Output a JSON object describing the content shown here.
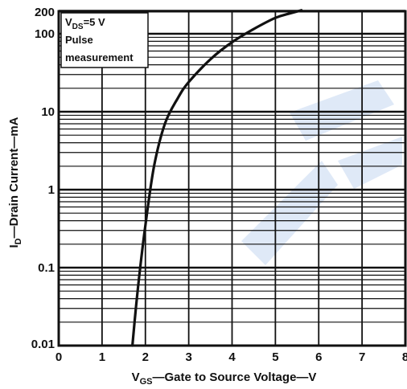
{
  "colors": {
    "curve": "#111111",
    "grid": "#111111",
    "watermark": "#dfe9f7"
  },
  "chart_data": {
    "type": "line",
    "xscale": "linear",
    "yscale": "log",
    "xlim": [
      0,
      8
    ],
    "ylim": [
      0.01,
      200
    ],
    "grid": true,
    "x_ticks": [
      "0",
      "1",
      "2",
      "3",
      "4",
      "5",
      "6",
      "7",
      "8"
    ],
    "x_tick_values": [
      0,
      1,
      2,
      3,
      4,
      5,
      6,
      7,
      8
    ],
    "y_ticks": [
      "0.01",
      "0.1",
      "1",
      "10",
      "100",
      "200"
    ],
    "y_tick_values": [
      0.01,
      0.1,
      1,
      10,
      100,
      200
    ],
    "xlabel": {
      "main": "V",
      "sub": "GS",
      "rest": "—Gate to Source Voltage—V"
    },
    "ylabel": {
      "main": "I",
      "sub": "D",
      "rest": "—Drain Current—mA"
    },
    "legend": {
      "line1_main": "V",
      "line1_sub": "DS",
      "line1_rest": "=5 V",
      "line2": "Pulse",
      "line3": "measurement",
      "placement": "top-left"
    },
    "series": [
      {
        "x": [
          1.7,
          1.78,
          1.88,
          2.0,
          2.2,
          2.45,
          2.75,
          3.0,
          3.5,
          4.0,
          4.5,
          5.0,
          5.3,
          5.6
        ],
        "y": [
          0.01,
          0.03,
          0.1,
          0.35,
          2,
          7,
          15,
          24,
          47,
          78,
          115,
          160,
          180,
          200
        ]
      }
    ]
  }
}
